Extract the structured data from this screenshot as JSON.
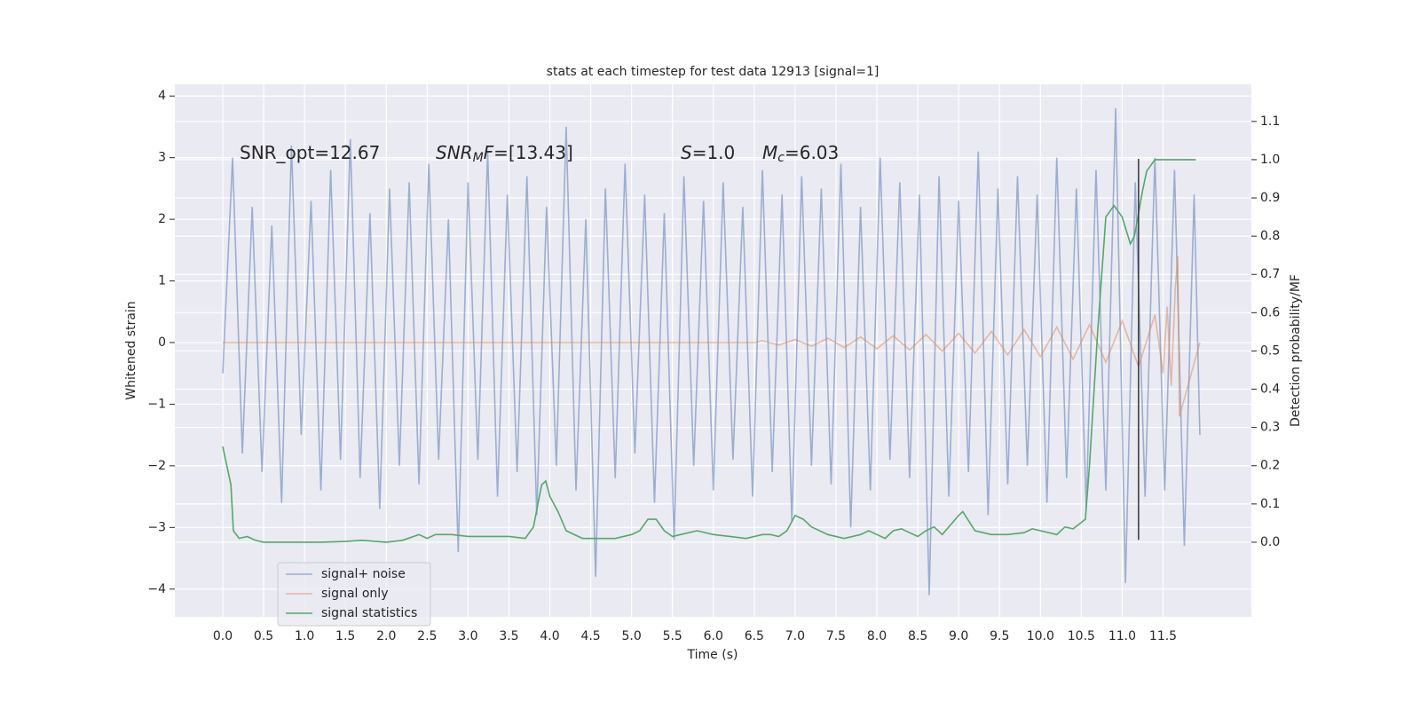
{
  "chart_data": {
    "type": "line",
    "title": "stats at each timestep for test data 12913 [signal=1]",
    "x_label": "Time (s)",
    "y_label": "Whitened strain",
    "y2_label": "Detection probability/MF",
    "annotations": [
      {
        "parts": [
          {
            "text": "SNR_opt=12.67"
          }
        ]
      },
      {
        "parts": [
          {
            "text": "SNR",
            "italic": true
          },
          {
            "text": "M",
            "italic": true,
            "sub": true
          },
          {
            "text": "F",
            "italic": true
          },
          {
            "text": "=[13.43]"
          }
        ]
      },
      {
        "parts": [
          {
            "text": "S",
            "italic": true
          },
          {
            "text": "=1.0"
          }
        ]
      },
      {
        "parts": [
          {
            "text": "M",
            "italic": true
          },
          {
            "text": "c",
            "italic": true,
            "sub": true
          },
          {
            "text": "=6.03"
          }
        ]
      }
    ],
    "xlim": [
      -0.586,
      12.58
    ],
    "ylim": [
      -4.45,
      4.19
    ],
    "y2lim": [
      -0.195,
      1.197
    ],
    "xticks": [
      {
        "value": 0,
        "label": "0.0"
      },
      0.5,
      {
        "value": 1,
        "label": "1.0"
      },
      1.5,
      {
        "value": 2,
        "label": "2.0"
      },
      2.5,
      {
        "value": 3,
        "label": "3.0"
      },
      3.5,
      {
        "value": 4,
        "label": "4.0"
      },
      4.5,
      {
        "value": 5,
        "label": "5.0"
      },
      5.5,
      {
        "value": 6,
        "label": "6.0"
      },
      6.5,
      {
        "value": 7,
        "label": "7.0"
      },
      7.5,
      {
        "value": 8,
        "label": "8.0"
      },
      8.5,
      {
        "value": 9,
        "label": "9.0"
      },
      9.5,
      {
        "value": 10,
        "label": "10.0"
      },
      10.5,
      {
        "value": 11,
        "label": "11.0"
      },
      11.5
    ],
    "yticks": [
      {
        "value": -4,
        "label": "−4"
      },
      {
        "value": -3,
        "label": "−3"
      },
      {
        "value": -2,
        "label": "−2"
      },
      {
        "value": -1,
        "label": "−1"
      },
      0,
      1,
      2,
      3,
      4
    ],
    "y2ticks": [
      {
        "value": 0,
        "label": "0.0"
      },
      0.1,
      0.2,
      0.3,
      0.4,
      0.5,
      0.6,
      0.7,
      0.8,
      0.9,
      {
        "value": 1,
        "label": "1.0"
      },
      1.1
    ],
    "grid": true,
    "legend": "lower left",
    "series": [
      {
        "name": "signal+ noise",
        "color": "#4c72b0",
        "opacity": 0.5,
        "x": [
          0,
          0.12,
          0.24,
          0.36,
          0.48,
          0.6,
          0.72,
          0.84,
          0.96,
          1.08,
          1.2,
          1.32,
          1.44,
          1.56,
          1.68,
          1.8,
          1.92,
          2.04,
          2.16,
          2.28,
          2.4,
          2.52,
          2.64,
          2.76,
          2.88,
          3,
          3.12,
          3.24,
          3.36,
          3.48,
          3.6,
          3.72,
          3.84,
          3.96,
          4.08,
          4.2,
          4.32,
          4.44,
          4.56,
          4.68,
          4.8,
          4.92,
          5.04,
          5.16,
          5.28,
          5.4,
          5.52,
          5.64,
          5.76,
          5.88,
          6,
          6.12,
          6.24,
          6.36,
          6.48,
          6.6,
          6.72,
          6.84,
          6.96,
          7.08,
          7.2,
          7.32,
          7.44,
          7.56,
          7.68,
          7.8,
          7.92,
          8.04,
          8.16,
          8.28,
          8.4,
          8.52,
          8.64,
          8.76,
          8.88,
          9,
          9.12,
          9.24,
          9.36,
          9.48,
          9.6,
          9.72,
          9.84,
          9.96,
          10.08,
          10.2,
          10.32,
          10.44,
          10.56,
          10.68,
          10.8,
          10.92,
          11.04,
          11.16,
          11.28,
          11.4,
          11.52,
          11.64,
          11.76,
          11.88,
          11.95
        ],
        "values": [
          -0.5,
          3.0,
          -1.8,
          2.2,
          -2.1,
          1.9,
          -2.6,
          3.2,
          -1.5,
          2.3,
          -2.4,
          2.8,
          -1.9,
          3.3,
          -2.2,
          2.1,
          -2.7,
          2.5,
          -2.0,
          2.6,
          -2.3,
          2.9,
          -1.9,
          2.0,
          -3.4,
          2.6,
          -1.9,
          3.1,
          -2.5,
          2.4,
          -2.1,
          2.7,
          -2.8,
          2.2,
          -2.0,
          3.5,
          -2.4,
          2.0,
          -3.8,
          2.5,
          -2.2,
          2.9,
          -1.8,
          2.4,
          -2.6,
          2.1,
          -3.2,
          2.7,
          -2.0,
          2.3,
          -2.4,
          2.6,
          -1.9,
          2.2,
          -2.5,
          2.8,
          -2.1,
          2.4,
          -2.9,
          2.7,
          -2.0,
          2.5,
          -2.3,
          2.9,
          -3.0,
          2.2,
          -2.4,
          3.0,
          -1.9,
          2.6,
          -2.2,
          2.4,
          -4.1,
          2.7,
          -2.5,
          2.3,
          -2.1,
          3.1,
          -2.8,
          2.5,
          -2.3,
          2.7,
          -2.0,
          2.4,
          -2.6,
          3.0,
          -2.2,
          2.5,
          -2.7,
          2.8,
          -2.4,
          3.8,
          -3.9,
          2.6,
          -2.5,
          3.0,
          -2.4,
          2.8,
          -3.3,
          2.4,
          -1.5
        ]
      },
      {
        "name": "signal only",
        "color": "#dd8452",
        "opacity": 0.5,
        "x": [
          0,
          6.5,
          6.6,
          6.8,
          7.0,
          7.2,
          7.4,
          7.6,
          7.8,
          8.0,
          8.2,
          8.4,
          8.6,
          8.8,
          9.0,
          9.2,
          9.4,
          9.6,
          9.8,
          10.0,
          10.2,
          10.4,
          10.6,
          10.8,
          11.0,
          11.2,
          11.4,
          11.5,
          11.55,
          11.6,
          11.65,
          11.68,
          11.7,
          11.95
        ],
        "values": [
          0,
          0,
          0.03,
          -0.04,
          0.05,
          -0.06,
          0.07,
          -0.08,
          0.09,
          -0.1,
          0.11,
          -0.12,
          0.13,
          -0.14,
          0.15,
          -0.17,
          0.18,
          -0.2,
          0.21,
          -0.23,
          0.25,
          -0.27,
          0.29,
          -0.32,
          0.35,
          -0.39,
          0.45,
          -0.5,
          0.58,
          -0.7,
          0.9,
          1.4,
          -1.2,
          0
        ]
      },
      {
        "name": "signal statistics",
        "color": "#55a868",
        "opacity": 1,
        "axis": "y2",
        "x": [
          0,
          0.1,
          0.13,
          0.2,
          0.3,
          0.4,
          0.5,
          0.7,
          1.0,
          1.2,
          1.5,
          1.7,
          2.0,
          2.2,
          2.4,
          2.5,
          2.6,
          2.8,
          3.0,
          3.5,
          3.7,
          3.8,
          3.9,
          3.95,
          4.0,
          4.1,
          4.2,
          4.4,
          4.6,
          4.8,
          5.0,
          5.1,
          5.2,
          5.3,
          5.4,
          5.5,
          5.6,
          5.8,
          6.0,
          6.2,
          6.4,
          6.6,
          6.7,
          6.8,
          6.9,
          7.0,
          7.1,
          7.2,
          7.4,
          7.6,
          7.8,
          7.9,
          8.0,
          8.1,
          8.2,
          8.3,
          8.4,
          8.5,
          8.6,
          8.7,
          8.8,
          9.0,
          9.05,
          9.2,
          9.4,
          9.6,
          9.8,
          9.9,
          10.0,
          10.2,
          10.3,
          10.4,
          10.55,
          10.6,
          10.7,
          10.8,
          10.9,
          11.0,
          11.1,
          11.15,
          11.25,
          11.3,
          11.4,
          11.9
        ],
        "values": [
          0.25,
          0.15,
          0.03,
          0.01,
          0.015,
          0.005,
          0,
          0,
          0,
          0,
          0.002,
          0.005,
          0,
          0.005,
          0.02,
          0.01,
          0.02,
          0.02,
          0.015,
          0.015,
          0.01,
          0.04,
          0.15,
          0.16,
          0.12,
          0.08,
          0.03,
          0.01,
          0.01,
          0.01,
          0.02,
          0.03,
          0.06,
          0.06,
          0.03,
          0.015,
          0.02,
          0.03,
          0.02,
          0.015,
          0.01,
          0.02,
          0.02,
          0.015,
          0.03,
          0.07,
          0.06,
          0.04,
          0.02,
          0.01,
          0.02,
          0.03,
          0.02,
          0.01,
          0.03,
          0.035,
          0.025,
          0.015,
          0.03,
          0.04,
          0.02,
          0.07,
          0.08,
          0.03,
          0.02,
          0.02,
          0.025,
          0.035,
          0.03,
          0.02,
          0.04,
          0.035,
          0.06,
          0.2,
          0.55,
          0.85,
          0.88,
          0.85,
          0.78,
          0.8,
          0.92,
          0.97,
          1.0,
          1.0
        ]
      }
    ],
    "vline": {
      "x": 11.2,
      "ymin": -3.2,
      "ymax": 2.98,
      "color": "#333333"
    }
  }
}
